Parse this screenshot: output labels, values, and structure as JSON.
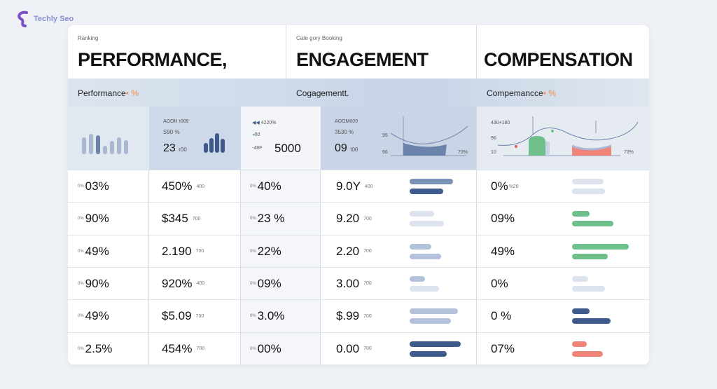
{
  "brand": {
    "name": "Techly Seo",
    "accent": "#7b4fc8"
  },
  "headers": [
    {
      "caption": "Ranking",
      "title": "PERFORMANCE,"
    },
    {
      "caption": "Cate gory Booking",
      "title": "ENGAGEMENT"
    },
    {
      "caption": "",
      "title": "COMPENSATION"
    }
  ],
  "subheaders": [
    {
      "label": "Performance",
      "mark": "• %"
    },
    {
      "label": "Cogagementt.",
      "mark": ""
    },
    {
      "label": "Compemancce",
      "mark": "• %"
    }
  ],
  "summary": {
    "perf": {
      "line1": "AOOH r009",
      "line2": "S90 %",
      "value": "23",
      "unit": "r00",
      "bars_left": [
        0.7,
        0.85,
        0.8,
        0.35,
        0.55,
        0.7,
        0.6
      ],
      "bars_right": [
        0.5,
        0.75,
        1,
        0.7
      ]
    },
    "mid": {
      "line1": "4220%",
      "line2": "00",
      "line3": "-48F",
      "value": "5000"
    },
    "eng": {
      "line1": "AOOM009",
      "line2": "3530 %",
      "value": "09",
      "unit": "t00",
      "axis_top": "96",
      "axis_bottom": "66",
      "axis_right": "73%"
    },
    "comp": {
      "line1": "430+180",
      "line2": "96",
      "line3": "10",
      "axis_right": "73%"
    }
  },
  "rows": [
    {
      "c1": "03%",
      "c2": "450%",
      "c2s": "400",
      "c3": "40%",
      "c4": "9.0Y",
      "c4s": "400",
      "eng_bars": [
        0.62,
        0.48
      ],
      "eng_colors": [
        "#7b92b8",
        "#3f5b8c"
      ],
      "c5": "0%",
      "c5s": "%20",
      "comp_bars": [
        0.45,
        0.47
      ],
      "comp_colors": [
        "#dde3ee",
        "#dde3ee"
      ]
    },
    {
      "c1": "90%",
      "c2": "$345",
      "c2s": "700",
      "c3": "23 %",
      "c4": "9.20",
      "c4s": "700",
      "eng_bars": [
        0.35,
        0.49
      ],
      "eng_colors": [
        "#dde3ee",
        "#dde3ee"
      ],
      "c5": "09%",
      "c5s": "",
      "comp_bars": [
        0.25,
        0.59
      ],
      "comp_colors": [
        "#6fbf8a",
        "#6fbf8a"
      ]
    },
    {
      "c1": "49%",
      "c2": "2.190",
      "c2s": "700",
      "c3": "22%",
      "c4": "2.20",
      "c4s": "700",
      "eng_bars": [
        0.31,
        0.45
      ],
      "eng_colors": [
        "#b3c2da",
        "#b3c2da"
      ],
      "c5": "49%",
      "c5s": "",
      "comp_bars": [
        0.81,
        0.51
      ],
      "comp_colors": [
        "#6fbf8a",
        "#6fbf8a"
      ]
    },
    {
      "c1": "90%",
      "c2": "920%",
      "c2s": "400",
      "c3": "09%",
      "c4": "3.00",
      "c4s": "700",
      "eng_bars": [
        0.22,
        0.42
      ],
      "eng_colors": [
        "#b3c2da",
        "#dde3ee"
      ],
      "c5": "0%",
      "c5s": "",
      "comp_bars": [
        0.23,
        0.47
      ],
      "comp_colors": [
        "#dde3ee",
        "#dde3ee"
      ]
    },
    {
      "c1": "49%",
      "c2": "$5.09",
      "c2s": "700",
      "c3": "3.0%",
      "c4": "$.99",
      "c4s": "700",
      "eng_bars": [
        0.69,
        0.59
      ],
      "eng_colors": [
        "#b3c2da",
        "#b3c2da"
      ],
      "c5": "0 %",
      "c5s": "",
      "comp_bars": [
        0.25,
        0.55
      ],
      "comp_colors": [
        "#3f5b8c",
        "#3f5b8c"
      ]
    },
    {
      "c1": "2.5%",
      "c2": "454%",
      "c2s": "700",
      "c3": "00%",
      "c4": "0.00",
      "c4s": "700",
      "eng_bars": [
        0.73,
        0.53
      ],
      "eng_colors": [
        "#3f5b8c",
        "#3f5b8c"
      ],
      "c5": "07%",
      "c5s": "",
      "comp_bars": [
        0.21,
        0.44
      ],
      "comp_colors": [
        "#f08478",
        "#f08478"
      ]
    }
  ],
  "row_prefix": "0%"
}
